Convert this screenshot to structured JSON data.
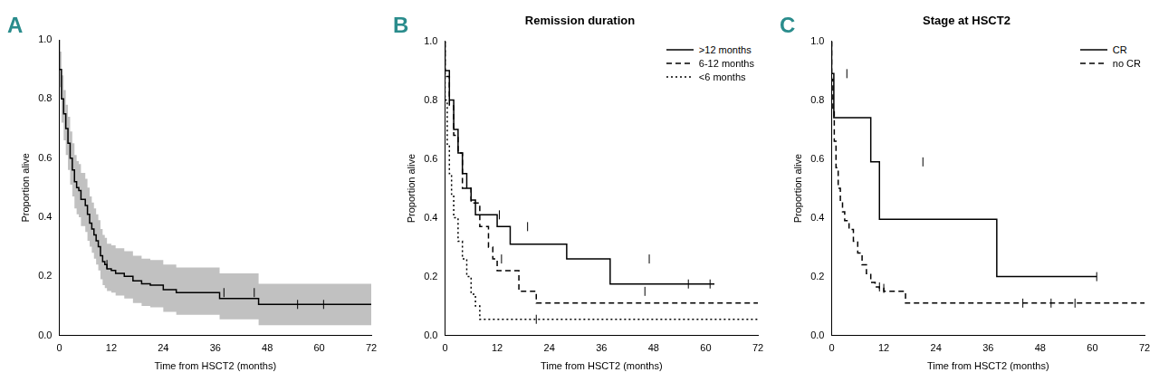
{
  "chart_data": [
    {
      "panel": "A",
      "type": "line",
      "xlabel": "Time from HSCT2 (months)",
      "ylabel": "Proportion alive",
      "xlim": [
        0,
        72
      ],
      "ylim": [
        0,
        1
      ],
      "xticks": [
        0,
        12,
        24,
        36,
        48,
        60,
        72
      ],
      "yticks": [
        {
          "value": 0,
          "label": "0.0"
        },
        0.2,
        0.4,
        0.6,
        0.8,
        {
          "value": 1,
          "label": "1.0"
        }
      ],
      "grid": false,
      "series": [
        {
          "color": "#000000",
          "line_style": "solid",
          "x": [
            0,
            0.5,
            1,
            1.5,
            2,
            2.5,
            3,
            3.5,
            4,
            4.5,
            5,
            6,
            6.5,
            7,
            7.5,
            8,
            8.5,
            9,
            9.5,
            10,
            10.5,
            11,
            12,
            13,
            15,
            17,
            19,
            21,
            24,
            27,
            37,
            46,
            52,
            72
          ],
          "values": [
            1,
            0.9,
            0.8,
            0.75,
            0.7,
            0.65,
            0.6,
            0.56,
            0.52,
            0.5,
            0.49,
            0.46,
            0.44,
            0.41,
            0.38,
            0.36,
            0.34,
            0.32,
            0.3,
            0.27,
            0.25,
            0.24,
            0.225,
            0.22,
            0.21,
            0.2,
            0.185,
            0.175,
            0.17,
            0.155,
            0.145,
            0.125,
            0.105,
            0.105
          ],
          "ci_upper": [
            1,
            0.96,
            0.88,
            0.83,
            0.78,
            0.74,
            0.69,
            0.65,
            0.61,
            0.59,
            0.58,
            0.55,
            0.53,
            0.5,
            0.47,
            0.45,
            0.43,
            0.41,
            0.39,
            0.36,
            0.34,
            0.33,
            0.31,
            0.305,
            0.295,
            0.285,
            0.27,
            0.26,
            0.255,
            0.24,
            0.23,
            0.21,
            0.175,
            0.175
          ],
          "ci_lower": [
            1,
            0.84,
            0.72,
            0.66,
            0.61,
            0.56,
            0.51,
            0.47,
            0.43,
            0.41,
            0.4,
            0.37,
            0.35,
            0.32,
            0.3,
            0.28,
            0.26,
            0.24,
            0.22,
            0.19,
            0.17,
            0.16,
            0.15,
            0.145,
            0.135,
            0.125,
            0.11,
            0.1,
            0.095,
            0.08,
            0.07,
            0.055,
            0.035,
            0.035
          ],
          "censored": [
            11,
            38,
            45,
            55,
            61
          ]
        }
      ]
    },
    {
      "panel": "B",
      "type": "line",
      "title": "Remission duration",
      "xlabel": "Time from HSCT2 (months)",
      "ylabel": "Proportion alive",
      "xlim": [
        0,
        72
      ],
      "ylim": [
        0,
        1
      ],
      "xticks": [
        0,
        12,
        24,
        36,
        48,
        60,
        72
      ],
      "yticks": [
        {
          "value": 0,
          "label": "0.0"
        },
        0.2,
        0.4,
        0.6,
        0.8,
        {
          "value": 1,
          "label": "1.0"
        }
      ],
      "grid": false,
      "legend": "upper right",
      "series": [
        {
          "name": ">12 months",
          "color": "#000000",
          "line_style": "solid",
          "x": [
            0,
            1,
            2,
            3,
            4,
            5,
            6,
            7,
            12,
            15,
            28,
            38,
            52,
            62
          ],
          "values": [
            1,
            0.9,
            0.8,
            0.7,
            0.62,
            0.55,
            0.5,
            0.46,
            0.41,
            0.37,
            0.31,
            0.26,
            0.175,
            0.175
          ],
          "censored": [
            12.5,
            19,
            47,
            56,
            61
          ]
        },
        {
          "name": "6-12 months",
          "color": "#000000",
          "line_style": "dashed",
          "x": [
            0,
            1,
            2,
            3,
            4,
            6,
            8,
            10,
            11,
            12,
            17,
            21,
            47,
            72
          ],
          "values": [
            1,
            0.88,
            0.78,
            0.68,
            0.62,
            0.5,
            0.45,
            0.37,
            0.3,
            0.26,
            0.22,
            0.15,
            0.11,
            0.11
          ],
          "censored": [
            13,
            46
          ]
        },
        {
          "name": "<6 months",
          "color": "#000000",
          "line_style": "dotted",
          "x": [
            0,
            0.5,
            1,
            1.5,
            2,
            3,
            4,
            5,
            6,
            7,
            8,
            9,
            72
          ],
          "values": [
            1,
            0.8,
            0.65,
            0.55,
            0.48,
            0.4,
            0.32,
            0.26,
            0.2,
            0.14,
            0.1,
            0.055,
            0.055
          ],
          "censored": [
            21
          ]
        }
      ]
    },
    {
      "panel": "C",
      "type": "line",
      "title": "Stage at HSCT2",
      "xlabel": "Time from HSCT2 (months)",
      "ylabel": "Proportion alive",
      "xlim": [
        0,
        72
      ],
      "ylim": [
        0,
        1
      ],
      "xticks": [
        0,
        12,
        24,
        36,
        48,
        60,
        72
      ],
      "yticks": [
        {
          "value": 0,
          "label": "0.0"
        },
        0.2,
        0.4,
        0.6,
        0.8,
        {
          "value": 1,
          "label": "1.0"
        }
      ],
      "grid": false,
      "legend": "upper right",
      "series": [
        {
          "name": "CR",
          "color": "#000000",
          "line_style": "solid",
          "x": [
            0,
            0.5,
            9,
            11,
            38,
            52,
            61
          ],
          "values": [
            1,
            0.89,
            0.74,
            0.59,
            0.395,
            0.2,
            0.2
          ],
          "censored": [
            3.5,
            21,
            61
          ]
        },
        {
          "name": "no CR",
          "color": "#000000",
          "line_style": "dashed",
          "x": [
            0,
            0.3,
            0.6,
            1,
            1.5,
            2,
            2.5,
            3,
            4,
            5,
            6,
            7,
            8,
            9,
            10,
            11,
            12,
            17,
            22,
            72
          ],
          "values": [
            1,
            0.87,
            0.76,
            0.66,
            0.57,
            0.5,
            0.45,
            0.42,
            0.39,
            0.36,
            0.32,
            0.28,
            0.24,
            0.21,
            0.18,
            0.165,
            0.16,
            0.15,
            0.11,
            0.11
          ],
          "censored": [
            11,
            12,
            44,
            50.5,
            56
          ]
        }
      ]
    }
  ]
}
